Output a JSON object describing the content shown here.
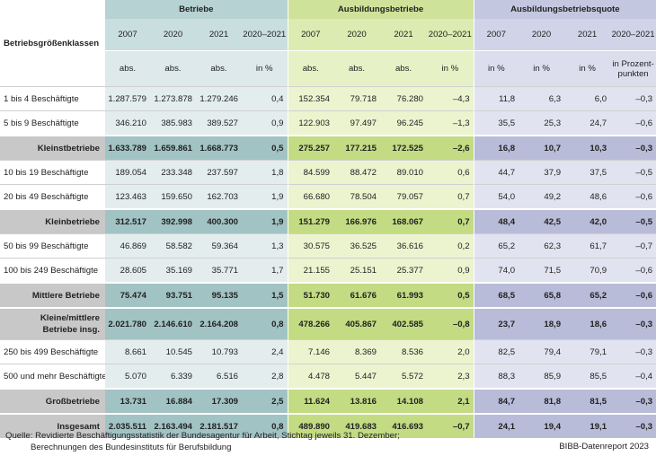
{
  "header": {
    "row_label": "Betriebsgrößenklassen",
    "groups": [
      "Betriebe",
      "Ausbildungsbetriebe",
      "Ausbildungsbetriebsquote"
    ],
    "years": [
      "2007",
      "2020",
      "2021",
      "2020–2021"
    ],
    "units_a": [
      "abs.",
      "abs.",
      "abs.",
      "in %"
    ],
    "units_b": [
      "abs.",
      "abs.",
      "abs.",
      "in %"
    ],
    "units_c": [
      "in %",
      "in %",
      "in %",
      "in Prozent-punkten"
    ]
  },
  "rows": [
    {
      "label": "1 bis 4 Beschäftigte",
      "v": [
        "1.287.579",
        "1.273.878",
        "1.279.246",
        "0,4",
        "152.354",
        "79.718",
        "76.280",
        "–4,3",
        "11,8",
        "6,3",
        "6,0",
        "–0,3"
      ]
    },
    {
      "label": "5 bis 9 Beschäftigte",
      "v": [
        "346.210",
        "385.983",
        "389.527",
        "0,9",
        "122.903",
        "97.497",
        "96.245",
        "–1,3",
        "35,5",
        "25,3",
        "24,7",
        "–0,6"
      ]
    },
    {
      "label": "Kleinstbetriebe",
      "v": [
        "1.633.789",
        "1.659.861",
        "1.668.773",
        "0,5",
        "275.257",
        "177.215",
        "172.525",
        "–2,6",
        "16,8",
        "10,7",
        "10,3",
        "–0,3"
      ]
    },
    {
      "label": "10 bis 19 Beschäftigte",
      "v": [
        "189.054",
        "233.348",
        "237.597",
        "1,8",
        "84.599",
        "88.472",
        "89.010",
        "0,6",
        "44,7",
        "37,9",
        "37,5",
        "–0,5"
      ]
    },
    {
      "label": "20 bis 49 Beschäftigte",
      "v": [
        "123.463",
        "159.650",
        "162.703",
        "1,9",
        "66.680",
        "78.504",
        "79.057",
        "0,7",
        "54,0",
        "49,2",
        "48,6",
        "–0,6"
      ]
    },
    {
      "label": "Kleinbetriebe",
      "v": [
        "312.517",
        "392.998",
        "400.300",
        "1,9",
        "151.279",
        "166.976",
        "168.067",
        "0,7",
        "48,4",
        "42,5",
        "42,0",
        "–0,5"
      ]
    },
    {
      "label": "50 bis 99 Beschäftigte",
      "v": [
        "46.869",
        "58.582",
        "59.364",
        "1,3",
        "30.575",
        "36.525",
        "36.616",
        "0,2",
        "65,2",
        "62,3",
        "61,7",
        "–0,7"
      ]
    },
    {
      "label": "100 bis 249 Beschäftigte",
      "v": [
        "28.605",
        "35.169",
        "35.771",
        "1,7",
        "21.155",
        "25.151",
        "25.377",
        "0,9",
        "74,0",
        "71,5",
        "70,9",
        "–0,6"
      ]
    },
    {
      "label": "Mittlere Betriebe",
      "v": [
        "75.474",
        "93.751",
        "95.135",
        "1,5",
        "51.730",
        "61.676",
        "61.993",
        "0,5",
        "68,5",
        "65,8",
        "65,2",
        "–0,6"
      ]
    },
    {
      "label": "Kleine/mittlere Betriebe insg.",
      "v": [
        "2.021.780",
        "2.146.610",
        "2.164.208",
        "0,8",
        "478.266",
        "405.867",
        "402.585",
        "–0,8",
        "23,7",
        "18,9",
        "18,6",
        "–0,3"
      ]
    },
    {
      "label": "250 bis 499 Beschäftigte",
      "v": [
        "8.661",
        "10.545",
        "10.793",
        "2,4",
        "7.146",
        "8.369",
        "8.536",
        "2,0",
        "82,5",
        "79,4",
        "79,1",
        "–0,3"
      ]
    },
    {
      "label": "500 und mehr Beschäftigte",
      "v": [
        "5.070",
        "6.339",
        "6.516",
        "2,8",
        "4.478",
        "5.447",
        "5.572",
        "2,3",
        "88,3",
        "85,9",
        "85,5",
        "–0,4"
      ]
    },
    {
      "label": "Großbetriebe",
      "v": [
        "13.731",
        "16.884",
        "17.309",
        "2,5",
        "11.624",
        "13.816",
        "14.108",
        "2,1",
        "84,7",
        "81,8",
        "81,5",
        "–0,3"
      ]
    },
    {
      "label": "Insgesamt",
      "v": [
        "2.035.511",
        "2.163.494",
        "2.181.517",
        "0,8",
        "489.890",
        "419.683",
        "416.693",
        "–0,7",
        "24,1",
        "19,4",
        "19,1",
        "–0,3"
      ]
    }
  ],
  "footer": {
    "line1": "Quelle: Revidierte Beschäftigungsstatistik der Bundesagentur für Arbeit, Stichtag jeweils 31. Dezember;",
    "line2": "Berechnungen des Bundesinstituts für Berufsbildung",
    "credit": "BIBB-Datenreport 2023"
  }
}
